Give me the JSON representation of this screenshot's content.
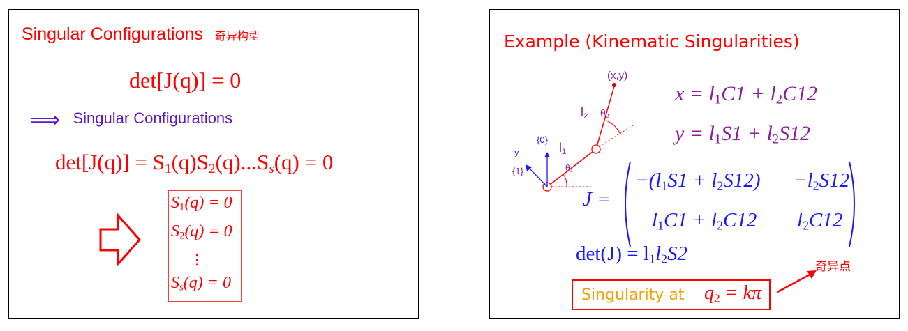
{
  "left": {
    "title": "Singular Configurations",
    "title_cn": "奇异构型",
    "eq1": "det[J(q)] = 0",
    "implies_arrow": "⟹",
    "implies_text": "Singular Configurations",
    "eq2_prefix": "det[J(q)] = S",
    "eq2_sub1": "1",
    "eq2_mid1": "(q)S",
    "eq2_sub2": "2",
    "eq2_mid2": "(q)...S",
    "eq2_sub3": "s",
    "eq2_end": "(q) = 0",
    "box_lines": [
      {
        "s": "S",
        "sub": "1",
        "rest": "(q) = 0"
      },
      {
        "s": "S",
        "sub": "2",
        "rest": "(q) = 0"
      },
      {
        "s": "⋮",
        "sub": "",
        "rest": ""
      },
      {
        "s": "S",
        "sub": "s",
        "rest": "(q) = 0"
      }
    ]
  },
  "right": {
    "title": "Example (Kinematic Singularities)",
    "diagram": {
      "point_label": "(x,y)",
      "l2": "l",
      "l2_sub": "2",
      "theta2": "θ",
      "theta2_sub": "2",
      "frame0": "{0}",
      "l1": "l",
      "l1_sub": "1",
      "y_axis": "y",
      "frame1": "{1}",
      "theta1": "θ",
      "theta1_sub": "1"
    },
    "x_eq": {
      "a": "x = l",
      "b": "1",
      "c": "C1 + l",
      "d": "2",
      "e": "C12"
    },
    "y_eq": {
      "a": "y = l",
      "b": "1",
      "c": "S1 + l",
      "d": "2",
      "e": "S12"
    },
    "j_label": "J =",
    "matrix": {
      "r1c1_a": "−(l",
      "r1c1_b": "1",
      "r1c1_c": "S1 + l",
      "r1c1_d": "2",
      "r1c1_e": "S12)",
      "r1c2_a": "−l",
      "r1c2_b": "2",
      "r1c2_c": "S12",
      "r2c1_a": "l",
      "r2c1_b": "1",
      "r2c1_c": "C1 + l",
      "r2c1_d": "2",
      "r2c1_e": "C12",
      "r2c2_a": "l",
      "r2c2_b": "2",
      "r2c2_c": "C12"
    },
    "det": {
      "a": "det(J) = l",
      "b": "1",
      "c": "l",
      "d": "2",
      "e": "S2"
    },
    "singular_cn": "奇异点",
    "singularity_text": "Singularity at",
    "singularity_eq": {
      "a": "q",
      "b": "2",
      "c": " = kπ"
    }
  },
  "colors": {
    "red": "#ff0000",
    "purple": "#8a1e9b",
    "blue": "#1a1aff",
    "violet": "#5b17c8",
    "orange": "#f5a000"
  }
}
